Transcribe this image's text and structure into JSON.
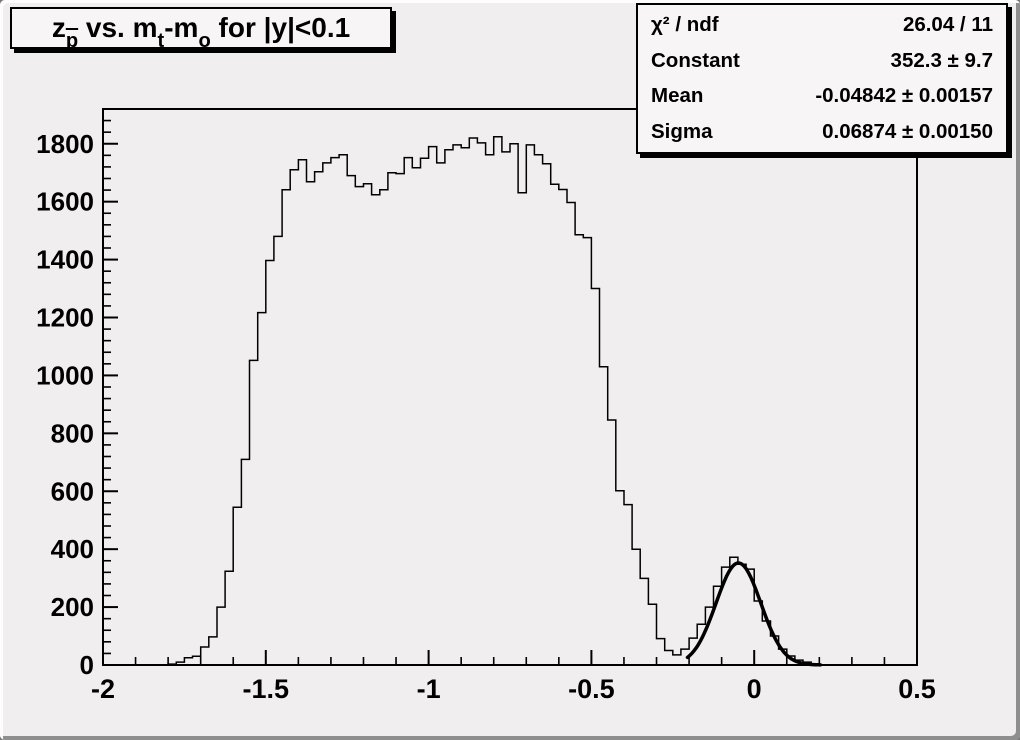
{
  "title_box": {
    "segments": [
      {
        "text": "z"
      },
      {
        "text": "p",
        "sub": true,
        "overline": true
      },
      {
        "text": " vs. m"
      },
      {
        "text": "t",
        "sub": true
      },
      {
        "text": "-m"
      },
      {
        "text": "o",
        "sub": true
      },
      {
        "text": " for |y|<0.1"
      }
    ]
  },
  "stats_box": {
    "rows": [
      {
        "label": "χ² / ndf",
        "value": "26.04 / 11"
      },
      {
        "label": "Constant",
        "value": "352.3 ± 9.7"
      },
      {
        "label": "Mean",
        "value": "-0.04842 ± 0.00157"
      },
      {
        "label": "Sigma",
        "value": "0.06874 ± 0.00150"
      }
    ]
  },
  "chart_data": {
    "type": "bar",
    "subtype": "histogram",
    "title": "z_p̄ vs. m_t-m_o for |y|<0.1",
    "xlabel": "",
    "ylabel": "",
    "grid": false,
    "x_axis": {
      "min": -2.0,
      "max": 0.5,
      "major_ticks": [
        -2,
        -1.5,
        -1,
        -0.5,
        0,
        0.5
      ],
      "tick_labels": [
        "-2",
        "-1.5",
        "-1",
        "-0.5",
        "0",
        "0.5"
      ],
      "minor_step": 0.1
    },
    "y_axis": {
      "min": 0,
      "max": 1920,
      "major_step": 200,
      "tick_labels": [
        "0",
        "200",
        "400",
        "600",
        "800",
        "1000",
        "1200",
        "1400",
        "1600",
        "1800"
      ],
      "minor_step": 40
    },
    "bins": {
      "start": -2.0,
      "width": 0.025,
      "values": [
        0,
        0,
        0,
        0,
        0,
        0,
        0,
        0,
        3,
        10,
        25,
        30,
        62,
        97,
        200,
        324,
        545,
        710,
        1052,
        1217,
        1397,
        1480,
        1641,
        1710,
        1745,
        1669,
        1703,
        1734,
        1752,
        1762,
        1690,
        1652,
        1662,
        1624,
        1641,
        1700,
        1697,
        1752,
        1717,
        1750,
        1790,
        1734,
        1779,
        1796,
        1786,
        1820,
        1803,
        1762,
        1824,
        1772,
        1800,
        1631,
        1796,
        1762,
        1731,
        1660,
        1642,
        1597,
        1486,
        1476,
        1300,
        1030,
        846,
        602,
        554,
        400,
        299,
        210,
        91,
        50,
        35,
        55,
        93,
        141,
        200,
        272,
        338,
        372,
        348,
        331,
        221,
        152,
        100,
        55,
        31,
        17,
        10,
        4,
        0,
        0,
        0,
        0,
        0,
        0,
        0,
        0,
        0,
        0,
        0,
        0
      ]
    },
    "fit": {
      "function": "gaussian",
      "constant": 352.3,
      "mean": -0.04842,
      "sigma": 0.06874,
      "range": [
        -0.205,
        0.205
      ]
    },
    "colors": {
      "line": "#000000",
      "fit": "#000000",
      "canvas": "#f0eeee",
      "pave_fill": "#f7f5f5"
    }
  }
}
